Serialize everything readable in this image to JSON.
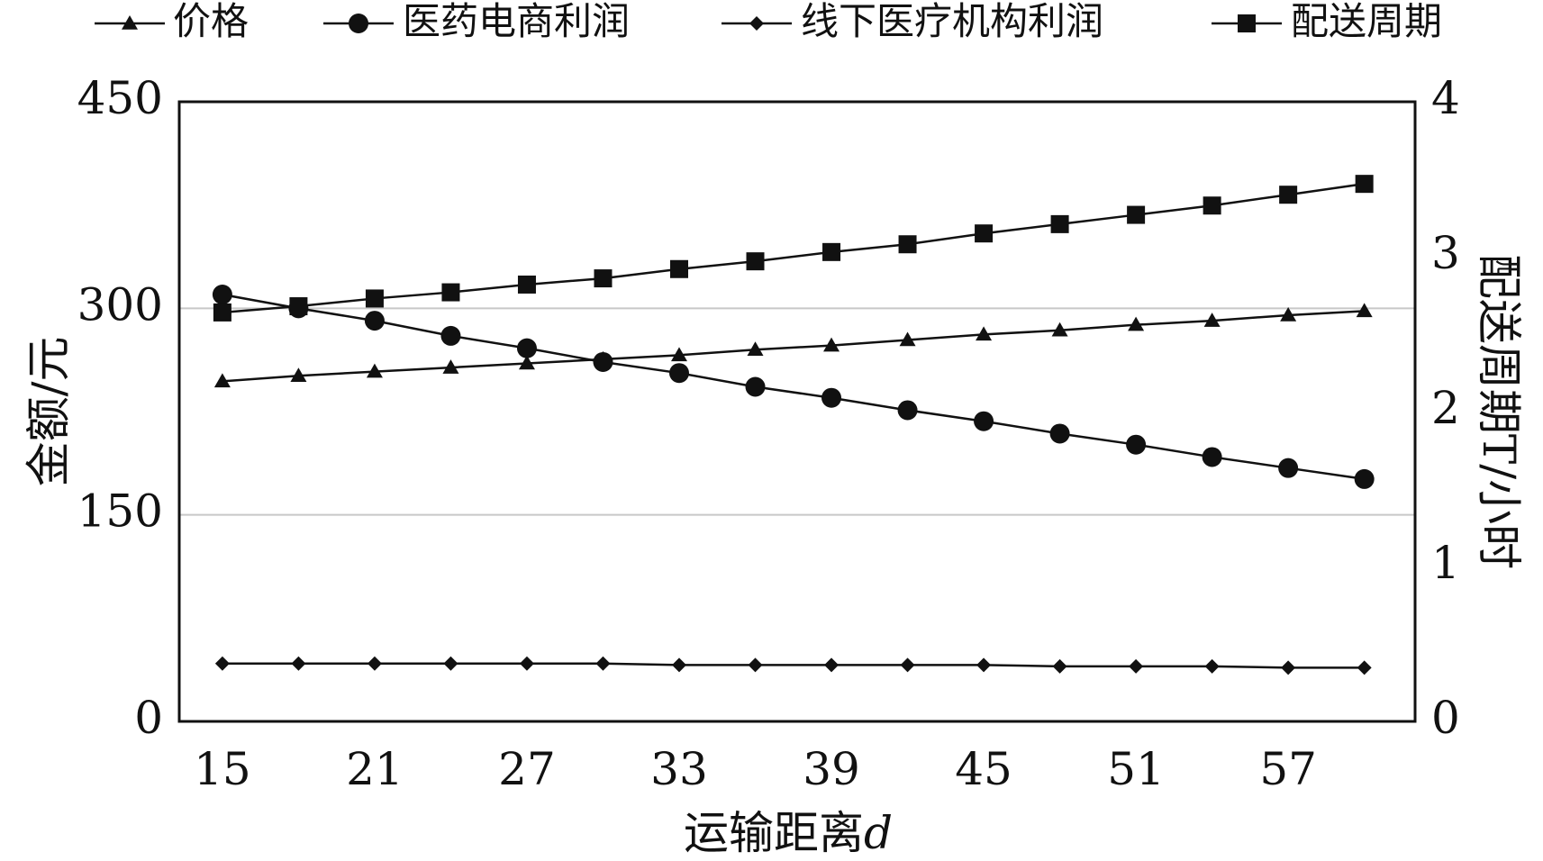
{
  "chart_data": {
    "type": "line",
    "title": "",
    "xlabel": "运输距离",
    "xlabel_italic_suffix": "d",
    "ylabel": "金额/元",
    "y2label": "配送周期T/小时",
    "x": [
      15,
      18,
      21,
      24,
      27,
      30,
      33,
      36,
      39,
      42,
      45,
      48,
      51,
      54,
      57,
      60
    ],
    "xticks": [
      "15",
      "21",
      "27",
      "33",
      "39",
      "45",
      "51",
      "57"
    ],
    "yticks": [
      "0",
      "150",
      "300",
      "450"
    ],
    "y2ticks": [
      "0",
      "1",
      "2",
      "3",
      "4"
    ],
    "ylim": [
      0,
      450
    ],
    "y2lim": [
      0,
      4
    ],
    "xlim": [
      13.3,
      62
    ],
    "grid": "horizontal",
    "legend_position": "top",
    "series": [
      {
        "name": "价格",
        "marker": "triangle",
        "axis": "left",
        "values": [
          247,
          251,
          254,
          257,
          260,
          263,
          266,
          270,
          273,
          277,
          281,
          284,
          288,
          291,
          295,
          298
        ]
      },
      {
        "name": "医药电商利润",
        "marker": "circle",
        "axis": "left",
        "values": [
          310,
          300,
          291,
          280,
          271,
          261,
          253,
          243,
          235,
          226,
          218,
          209,
          201,
          192,
          184,
          176
        ]
      },
      {
        "name": "线下医疗机构利润",
        "marker": "diamond",
        "axis": "left",
        "values": [
          42,
          42,
          42,
          42,
          42,
          42,
          41,
          41,
          41,
          41,
          41,
          40,
          40,
          40,
          39,
          39
        ]
      },
      {
        "name": "配送周期",
        "marker": "square",
        "axis": "right",
        "values": [
          2.64,
          2.68,
          2.73,
          2.77,
          2.82,
          2.86,
          2.92,
          2.97,
          3.03,
          3.08,
          3.15,
          3.21,
          3.27,
          3.33,
          3.4,
          3.47
        ]
      }
    ]
  }
}
